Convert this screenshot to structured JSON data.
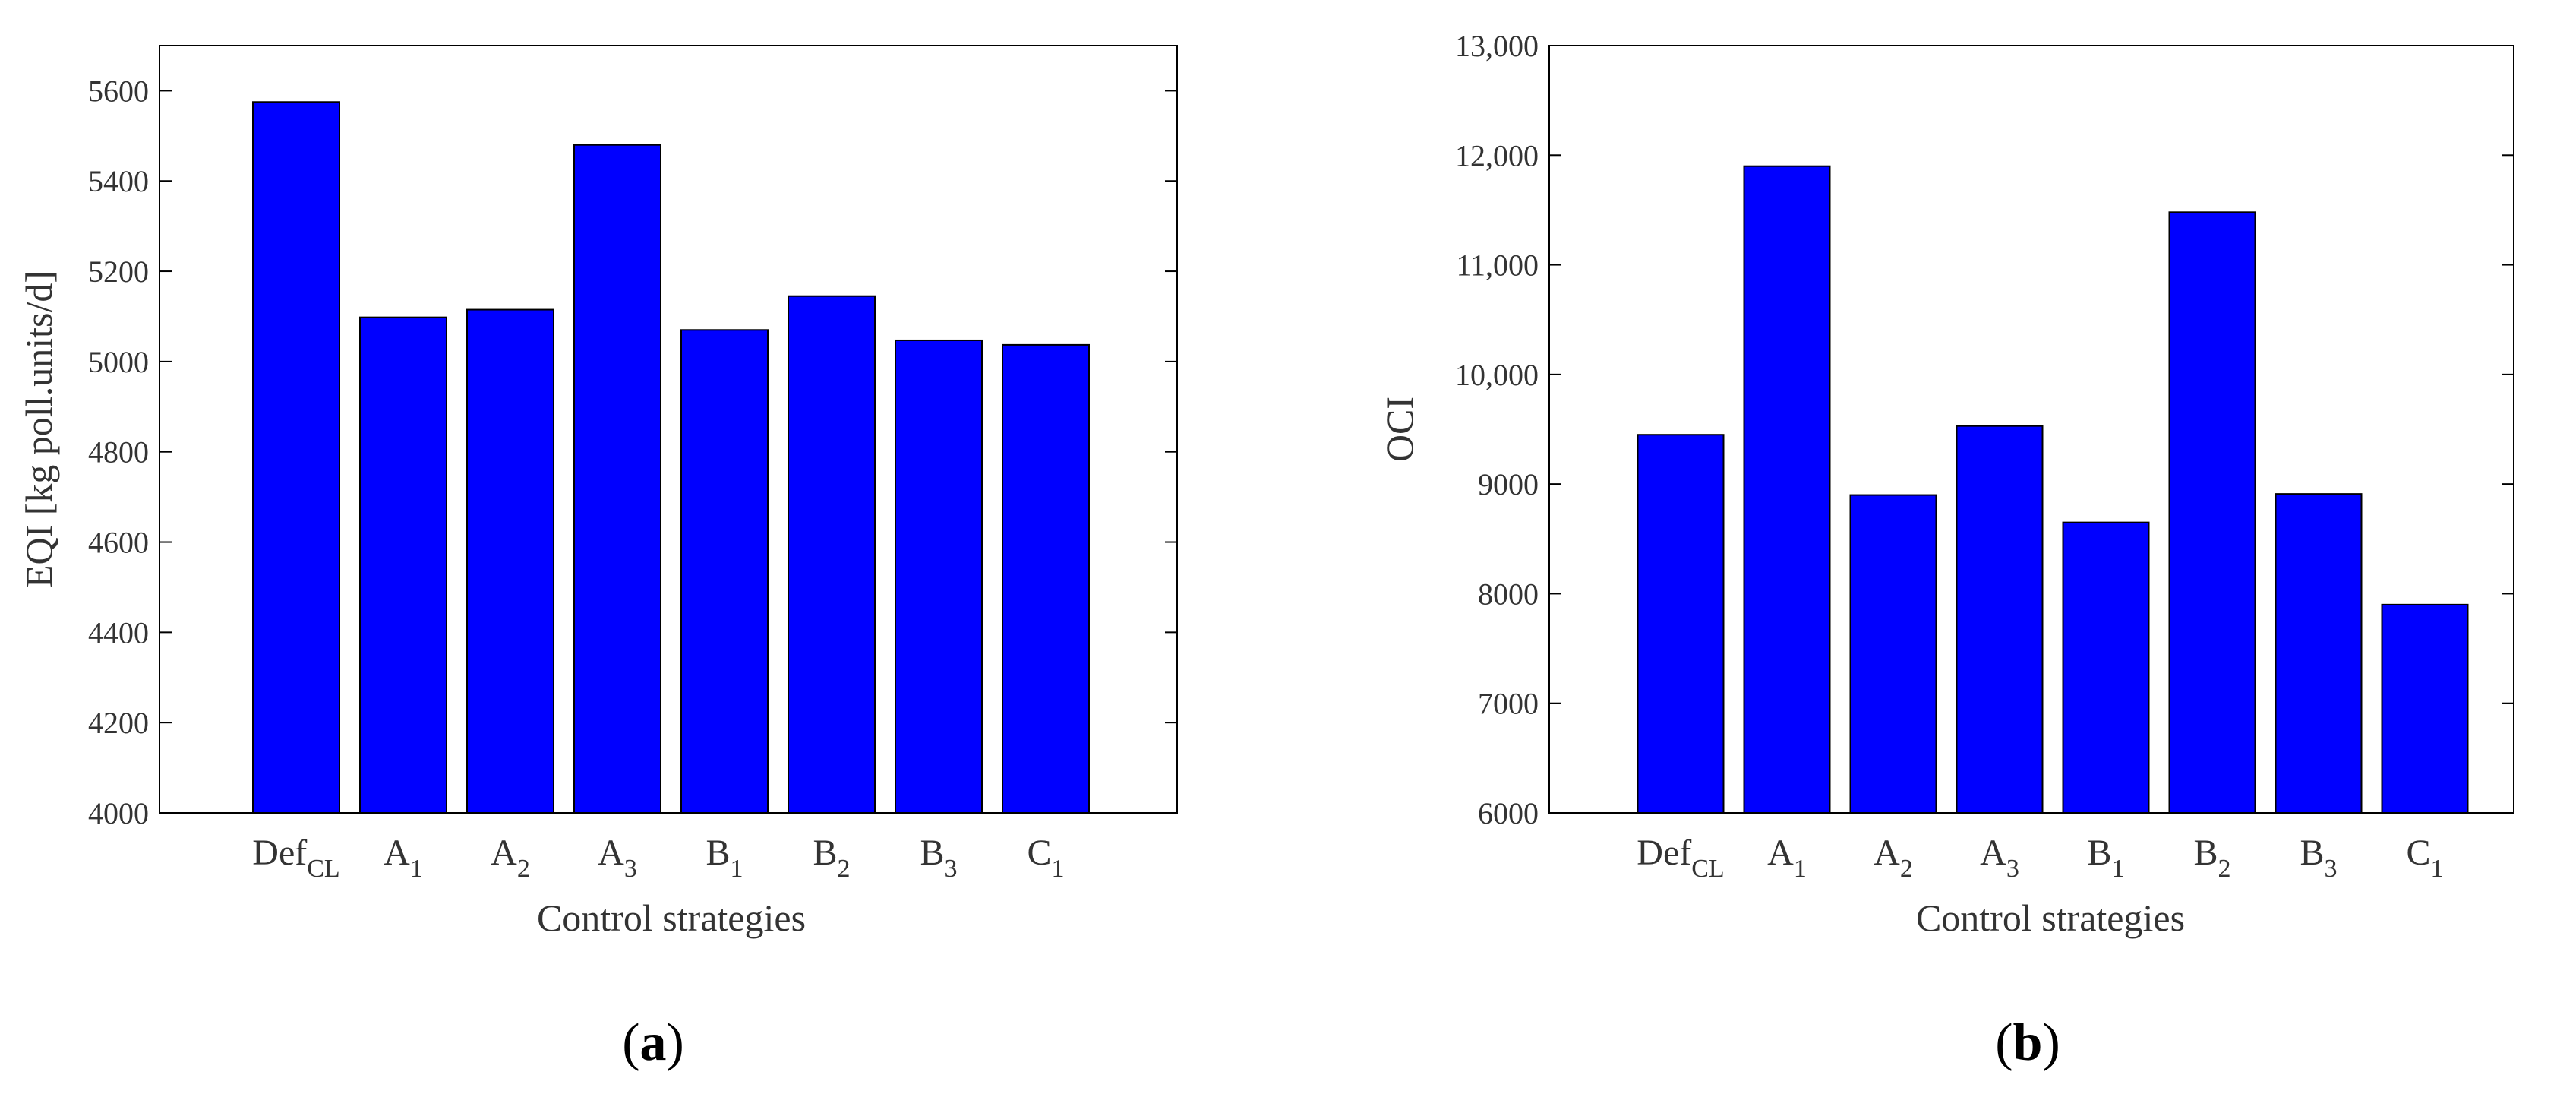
{
  "colors": {
    "bar_fill": "#0000FF",
    "bar_stroke": "#000000",
    "axis": "#000000",
    "text": "#333333"
  },
  "chart_data": [
    {
      "type": "bar",
      "panel": "a",
      "categories": [
        {
          "base": "Def",
          "sub": "CL"
        },
        {
          "base": "A",
          "sub": "1"
        },
        {
          "base": "A",
          "sub": "2"
        },
        {
          "base": "A",
          "sub": "3"
        },
        {
          "base": "B",
          "sub": "1"
        },
        {
          "base": "B",
          "sub": "2"
        },
        {
          "base": "B",
          "sub": "3"
        },
        {
          "base": "C",
          "sub": "1"
        }
      ],
      "values": [
        5575,
        5098,
        5115,
        5480,
        5070,
        5145,
        5047,
        5037
      ],
      "title": "",
      "xlabel": "Control strategies",
      "ylabel": "EQI [kg poll.units/d]",
      "ylim": [
        4000,
        5700
      ],
      "yticks": [
        4000,
        4200,
        4400,
        4600,
        4800,
        5000,
        5200,
        5400,
        5600
      ],
      "ytick_labels": [
        "4000",
        "4200",
        "4400",
        "4600",
        "4800",
        "5000",
        "5200",
        "5400",
        "5600"
      ],
      "grid": false
    },
    {
      "type": "bar",
      "panel": "b",
      "categories": [
        {
          "base": "Def",
          "sub": "CL"
        },
        {
          "base": "A",
          "sub": "1"
        },
        {
          "base": "A",
          "sub": "2"
        },
        {
          "base": "A",
          "sub": "3"
        },
        {
          "base": "B",
          "sub": "1"
        },
        {
          "base": "B",
          "sub": "2"
        },
        {
          "base": "B",
          "sub": "3"
        },
        {
          "base": "C",
          "sub": "1"
        }
      ],
      "values": [
        9450,
        11900,
        8900,
        9530,
        8650,
        11480,
        8910,
        7900
      ],
      "title": "",
      "xlabel": "Control strategies",
      "ylabel": "OCI",
      "ylim": [
        6000,
        13000
      ],
      "yticks": [
        6000,
        7000,
        8000,
        9000,
        10000,
        11000,
        12000,
        13000
      ],
      "ytick_labels": [
        "6000",
        "7000",
        "8000",
        "9000",
        "10,000",
        "11,000",
        "12,000",
        "13,000"
      ],
      "grid": false
    }
  ],
  "panels": [
    {
      "open": "(",
      "letter": "a",
      "close": ")"
    },
    {
      "open": "(",
      "letter": "b",
      "close": ")"
    }
  ]
}
